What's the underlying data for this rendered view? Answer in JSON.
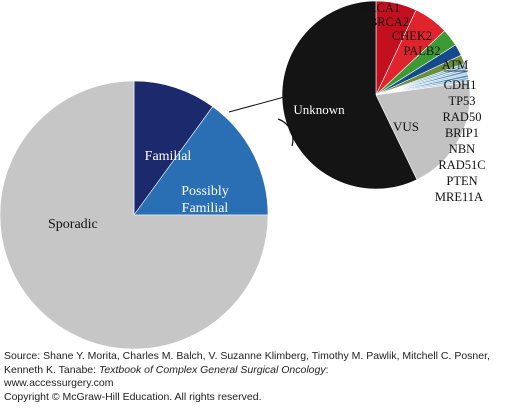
{
  "chart_data": [
    {
      "type": "pie",
      "categories": [
        "Familial",
        "Possibly Familial",
        "Sporadic"
      ],
      "values": [
        10,
        15,
        75
      ],
      "colors": [
        "#1a2a6c",
        "#2a6fb3",
        "#c6c6c6"
      ],
      "title": "",
      "xlabel": "",
      "ylabel": ""
    },
    {
      "type": "pie",
      "categories": [
        "BRCA1",
        "BRCA2",
        "CHEK2",
        "PALB2",
        "ATM",
        "CDH1",
        "TP53",
        "RAD50",
        "BRIP1",
        "NBN",
        "RAD51C",
        "PTEN",
        "MRE11A",
        "VUS",
        "Unknown"
      ],
      "values": [
        7,
        6,
        3,
        2,
        1.5,
        0.4,
        0.4,
        0.4,
        0.4,
        0.4,
        0.4,
        0.4,
        0.4,
        20,
        57
      ],
      "colors": [
        "#c3101e",
        "#e0242d",
        "#3c9a35",
        "#174a8c",
        "#6b8e3c",
        "#88b8d8",
        "#6fa3cc",
        "#9fc4de",
        "#5a8fbd",
        "#b0cde3",
        "#4f86b7",
        "#7fb0d4",
        "#a8cbe3",
        "#c2c2c2",
        "#141414"
      ],
      "title": "",
      "xlabel": "",
      "ylabel": ""
    }
  ],
  "source": {
    "prefix": "Source: Shane Y. Morita, Charles M. Balch, V. Suzanne Klimberg, Timothy M. Pawlik, Mitchell C. Posner, Kenneth K. Tanabe: ",
    "book": "Textbook of Complex General Surgical Oncology",
    "suffix": ":",
    "url": "www.accessurgery.com",
    "copyright": "Copyright © McGraw-Hill Education. All rights reserved."
  }
}
